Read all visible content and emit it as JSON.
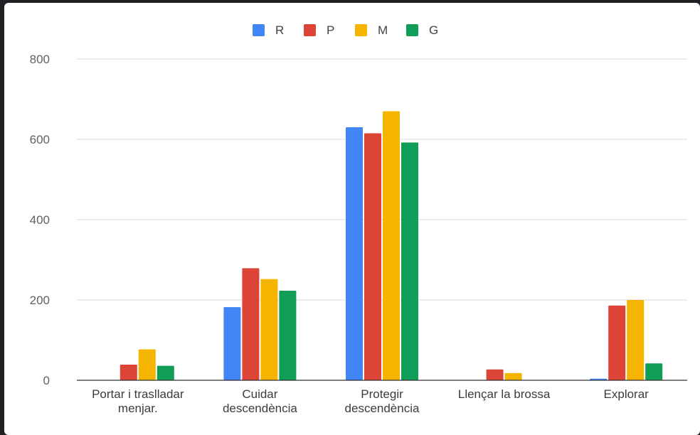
{
  "chart_data": {
    "type": "bar",
    "categories": [
      [
        "Portar i traslladar",
        "menjar."
      ],
      [
        "Cuidar",
        "descendència"
      ],
      [
        "Protegir",
        "descendència"
      ],
      [
        "Llençar la brossa"
      ],
      [
        "Explorar"
      ]
    ],
    "series": [
      {
        "name": "R",
        "color": "#4285f4",
        "values": [
          0,
          182,
          630,
          0,
          4
        ]
      },
      {
        "name": "P",
        "color": "#db4437",
        "values": [
          39,
          279,
          615,
          27,
          186
        ]
      },
      {
        "name": "M",
        "color": "#f4b400",
        "values": [
          77,
          252,
          670,
          18,
          200
        ]
      },
      {
        "name": "G",
        "color": "#0f9d58",
        "values": [
          36,
          223,
          592,
          0,
          42
        ]
      }
    ],
    "ylim": [
      0,
      800
    ],
    "yticks": [
      0,
      200,
      400,
      600,
      800
    ],
    "grid": true,
    "legend_position": "top",
    "title": "",
    "xlabel": "",
    "ylabel": ""
  }
}
